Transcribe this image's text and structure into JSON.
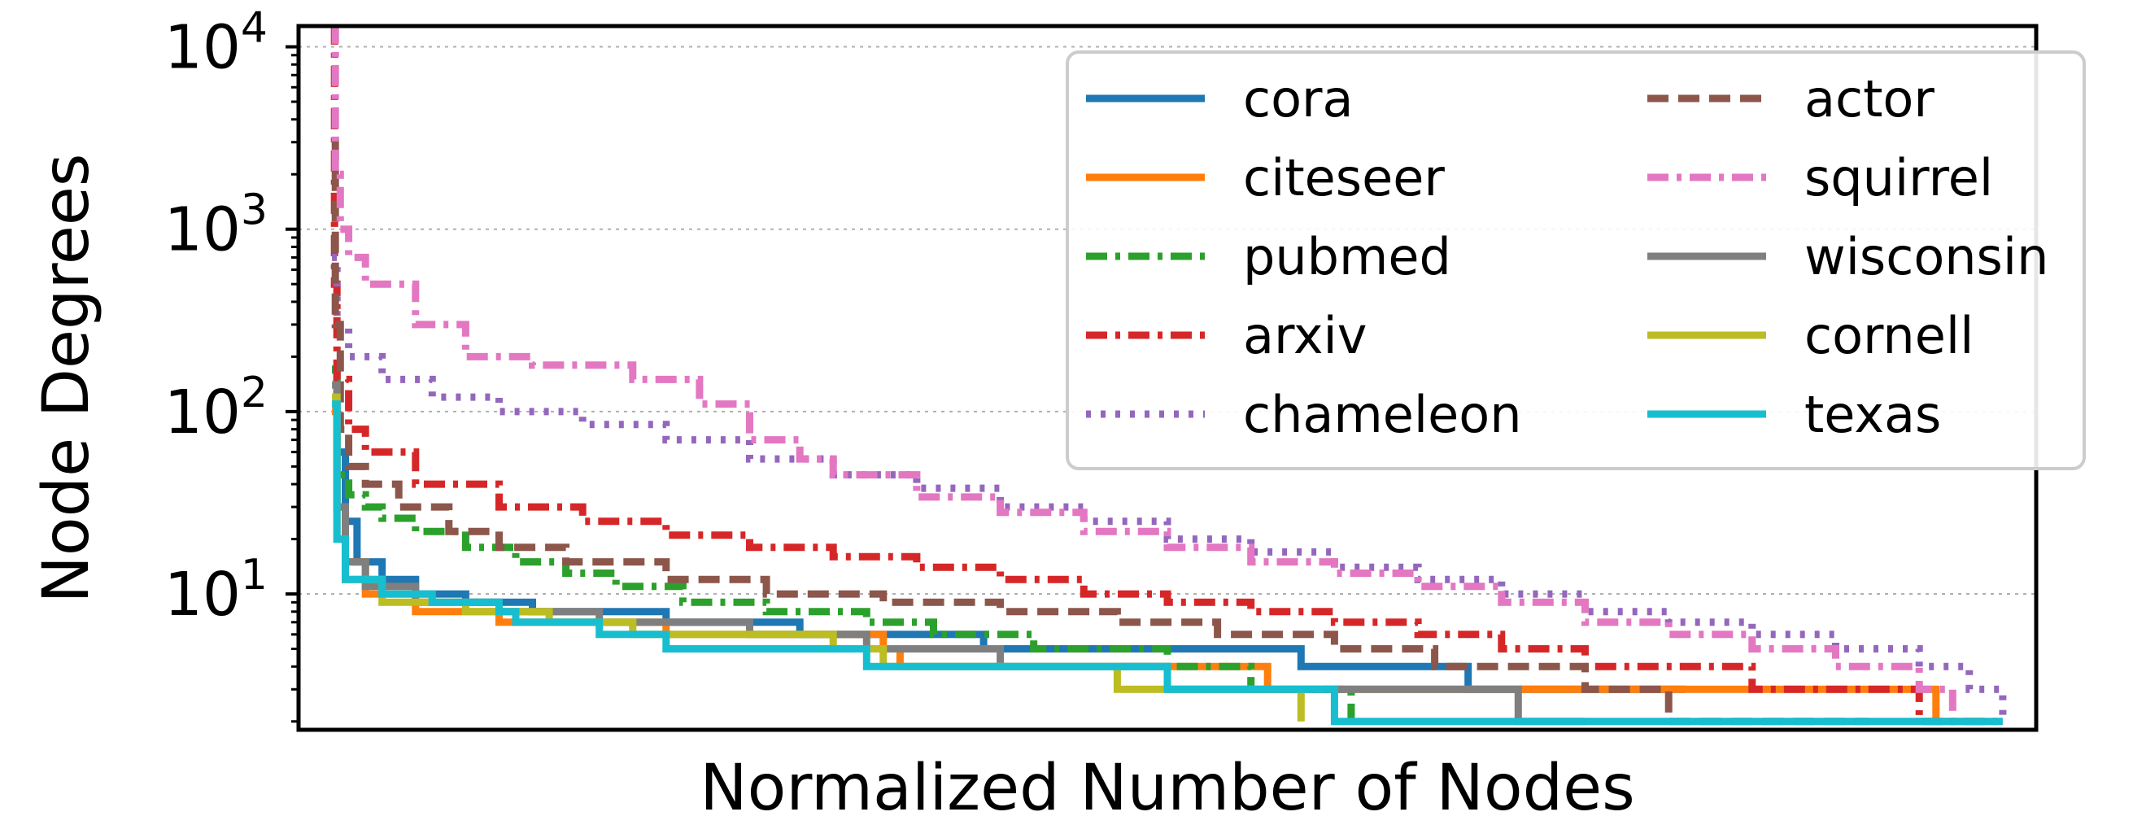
{
  "chart_data": {
    "type": "line",
    "title": "",
    "xlabel": "Normalized Number of Nodes",
    "ylabel": "Node Degrees",
    "yscale": "log",
    "xlim": [
      -0.02,
      1.02
    ],
    "ylim": [
      1.8,
      13000
    ],
    "yticks": [
      {
        "value": 10,
        "base": "10",
        "exp": "1"
      },
      {
        "value": 100,
        "base": "10",
        "exp": "2"
      },
      {
        "value": 1000,
        "base": "10",
        "exp": "3"
      },
      {
        "value": 10000,
        "base": "10",
        "exp": "4"
      }
    ],
    "xticks": [],
    "grid": "y-major-dotted",
    "legend": {
      "location": "upper-right",
      "columns": 2
    },
    "series": [
      {
        "name": "cora",
        "color": "#1f77b4",
        "dash": "solid",
        "x": [
          0.0,
          0.003,
          0.008,
          0.015,
          0.03,
          0.05,
          0.08,
          0.12,
          0.15,
          0.2,
          0.23,
          0.28,
          0.35,
          0.39,
          0.47,
          0.58,
          0.62,
          0.68,
          0.78,
          0.79,
          0.8,
          0.81
        ],
        "y": [
          169,
          60,
          25,
          15,
          12,
          10,
          9,
          8,
          8,
          7,
          7,
          6,
          6,
          5,
          5,
          4,
          4,
          3,
          3,
          3,
          3,
          3
        ]
      },
      {
        "name": "citeseer",
        "color": "#ff7f0e",
        "dash": "solid",
        "x": [
          0.0,
          0.003,
          0.008,
          0.02,
          0.05,
          0.1,
          0.2,
          0.33,
          0.34,
          0.4,
          0.53,
          0.55,
          0.56,
          0.64,
          0.9,
          0.96,
          0.98,
          0.99
        ],
        "y": [
          100,
          30,
          15,
          10,
          8,
          7,
          6,
          5,
          4,
          4,
          4,
          4,
          3,
          3,
          3,
          2,
          2,
          2
        ]
      },
      {
        "name": "pubmed",
        "color": "#2ca02c",
        "dash": "dashdot",
        "x": [
          0.0,
          0.003,
          0.01,
          0.02,
          0.03,
          0.05,
          0.08,
          0.11,
          0.14,
          0.17,
          0.21,
          0.26,
          0.32,
          0.36,
          0.42,
          0.5,
          0.55,
          0.56,
          0.58,
          0.61
        ],
        "y": [
          171,
          45,
          35,
          30,
          26,
          22,
          18,
          15,
          13,
          11,
          9,
          8,
          7,
          6,
          5,
          4,
          3,
          3,
          3,
          2
        ]
      },
      {
        "name": "arxiv",
        "color": "#d62728",
        "dash": "dashdot",
        "x": [
          0.0,
          0.0015,
          0.003,
          0.01,
          0.02,
          0.05,
          0.1,
          0.15,
          0.2,
          0.25,
          0.3,
          0.35,
          0.4,
          0.45,
          0.5,
          0.55,
          0.6,
          0.65,
          0.7,
          0.75,
          0.8,
          0.85,
          0.9,
          0.95,
          1.0
        ],
        "y": [
          13000,
          500,
          150,
          80,
          60,
          40,
          30,
          25,
          21,
          18,
          16,
          14,
          12,
          10,
          9,
          8,
          7,
          6,
          5,
          4,
          4,
          3,
          3,
          2,
          2
        ]
      },
      {
        "name": "chameleon",
        "color": "#9467bd",
        "dash": "dotted",
        "x": [
          0.0,
          0.003,
          0.01,
          0.03,
          0.06,
          0.1,
          0.15,
          0.2,
          0.25,
          0.3,
          0.35,
          0.4,
          0.45,
          0.5,
          0.55,
          0.6,
          0.65,
          0.7,
          0.75,
          0.8,
          0.85,
          0.9,
          0.95,
          0.98,
          1.0
        ],
        "y": [
          700,
          300,
          200,
          150,
          120,
          100,
          85,
          70,
          55,
          45,
          38,
          30,
          25,
          20,
          17,
          14,
          12,
          10,
          8,
          7,
          6,
          5,
          4,
          3,
          2
        ]
      },
      {
        "name": "actor",
        "color": "#8c564b",
        "dash": "dashed",
        "x": [
          0.0,
          0.002,
          0.005,
          0.01,
          0.02,
          0.04,
          0.07,
          0.1,
          0.14,
          0.2,
          0.26,
          0.33,
          0.4,
          0.47,
          0.53,
          0.6,
          0.66,
          0.7,
          0.75,
          0.76,
          0.77,
          0.8,
          0.92
        ],
        "y": [
          3000,
          300,
          80,
          50,
          40,
          30,
          22,
          18,
          15,
          12,
          10,
          9,
          8,
          7,
          6,
          5,
          4,
          4,
          3,
          3,
          3,
          2,
          2
        ]
      },
      {
        "name": "squirrel",
        "color": "#e377c2",
        "dash": "dashdot",
        "x": [
          0.0,
          0.002,
          0.005,
          0.01,
          0.02,
          0.05,
          0.08,
          0.12,
          0.18,
          0.22,
          0.25,
          0.28,
          0.3,
          0.35,
          0.4,
          0.45,
          0.5,
          0.55,
          0.6,
          0.65,
          0.7,
          0.75,
          0.8,
          0.85,
          0.9,
          0.95,
          0.97
        ],
        "y": [
          13000,
          2000,
          1000,
          700,
          500,
          300,
          200,
          180,
          150,
          110,
          70,
          55,
          45,
          34,
          28,
          22,
          18,
          15,
          13,
          11,
          9,
          7,
          6,
          5,
          4,
          3,
          2
        ]
      },
      {
        "name": "wisconsin",
        "color": "#7f7f7f",
        "dash": "solid",
        "x": [
          0.0,
          0.003,
          0.008,
          0.02,
          0.05,
          0.1,
          0.16,
          0.25,
          0.32,
          0.35,
          0.4,
          0.45,
          0.48,
          0.5,
          0.6,
          0.62,
          0.7,
          0.71,
          0.75
        ],
        "y": [
          140,
          30,
          15,
          11,
          9,
          8,
          7,
          6,
          5,
          5,
          4,
          4,
          4,
          3,
          3,
          3,
          3,
          2,
          2
        ]
      },
      {
        "name": "cornell",
        "color": "#bcbd22",
        "dash": "solid",
        "x": [
          0.0,
          0.003,
          0.008,
          0.03,
          0.08,
          0.13,
          0.18,
          0.24,
          0.3,
          0.33,
          0.35,
          0.4,
          0.47,
          0.56,
          0.58
        ],
        "y": [
          120,
          20,
          12,
          9,
          8,
          7,
          6,
          6,
          5,
          4,
          4,
          4,
          3,
          3,
          2
        ]
      },
      {
        "name": "texas",
        "color": "#17becf",
        "dash": "solid",
        "x": [
          0.0,
          0.003,
          0.008,
          0.03,
          0.06,
          0.1,
          0.11,
          0.15,
          0.16,
          0.2,
          0.3,
          0.31,
          0.32,
          0.4,
          0.5,
          0.58,
          0.59,
          0.6,
          1.0
        ],
        "y": [
          110,
          20,
          12,
          10,
          9,
          8,
          7,
          7,
          6,
          5,
          5,
          5,
          4,
          4,
          3,
          3,
          3,
          2,
          2
        ]
      }
    ]
  }
}
